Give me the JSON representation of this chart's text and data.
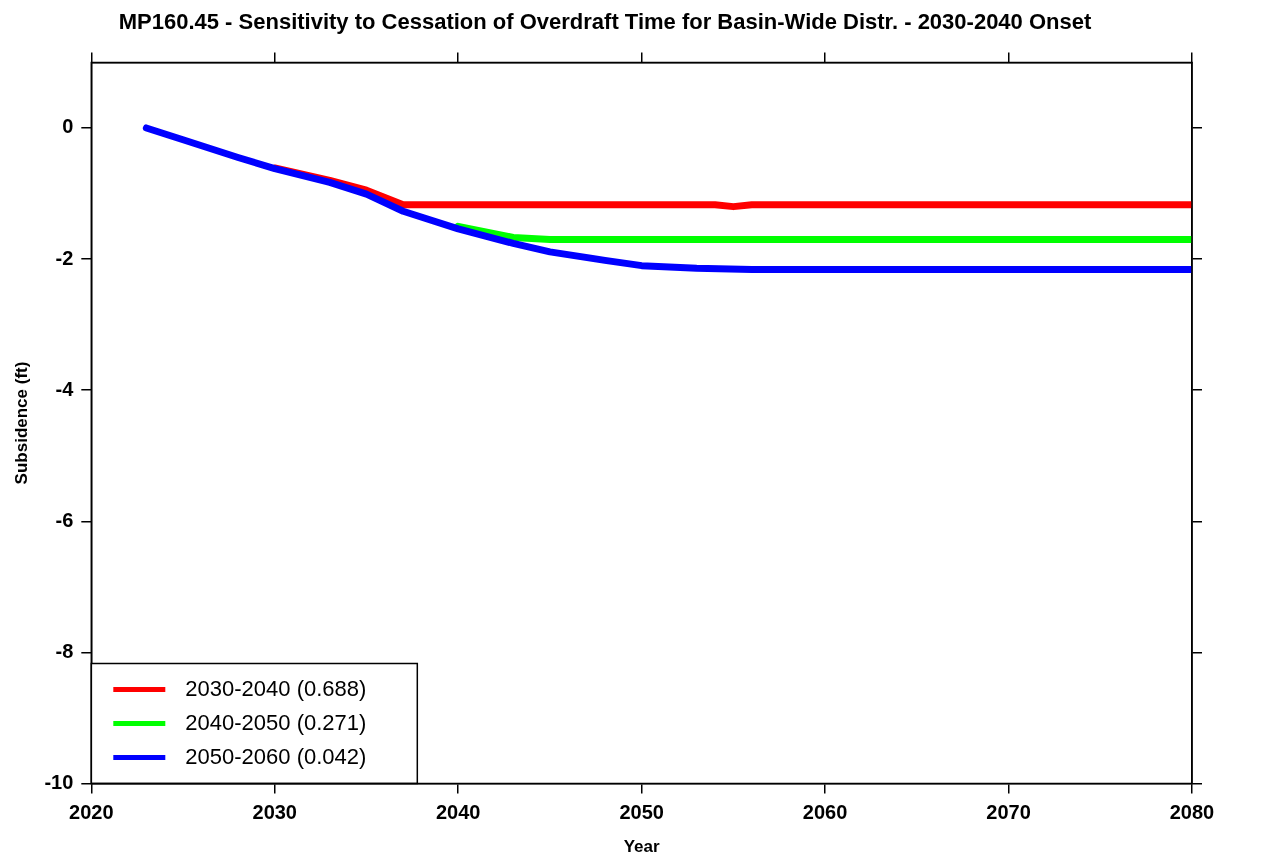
{
  "chart_data": {
    "type": "line",
    "title": "MP160.45 - Sensitivity to Cessation of Overdraft Time for Basin-Wide Distr. - 2030-2040 Onset",
    "xlabel": "Year",
    "ylabel": "Subsidence (ft)",
    "xlim": [
      2020,
      2080
    ],
    "xticks": [
      2020,
      2030,
      2040,
      2050,
      2060,
      2070,
      2080
    ],
    "ylim": [
      -10,
      1
    ],
    "yticks": [
      -10,
      -8,
      -6,
      -4,
      -2,
      0
    ],
    "grid": false,
    "legend": "bottom left",
    "marker": "none",
    "line_style": "solid",
    "series": [
      {
        "name": "2030-2040 (0.688)",
        "color": "#ff0000",
        "x": [
          2030,
          2033,
          2035,
          2037,
          2040,
          2050,
          2054,
          2055,
          2056,
          2060,
          2070,
          2080
        ],
        "values": [
          -0.61,
          -0.8,
          -0.95,
          -1.17,
          -1.17,
          -1.17,
          -1.17,
          -1.2,
          -1.17,
          -1.17,
          -1.17,
          -1.17
        ]
      },
      {
        "name": "2040-2050 (0.271)",
        "color": "#00ff00",
        "x": [
          2040,
          2043,
          2045,
          2050,
          2060,
          2070,
          2080
        ],
        "values": [
          -1.5,
          -1.67,
          -1.7,
          -1.7,
          -1.7,
          -1.7,
          -1.7
        ]
      },
      {
        "name": "2050-2060 (0.042)",
        "color": "#0000ff",
        "x": [
          2023,
          2025,
          2028,
          2030,
          2033,
          2035,
          2037,
          2040,
          2043,
          2045,
          2048,
          2050,
          2053,
          2056,
          2060,
          2070,
          2080
        ],
        "values": [
          0,
          -0.18,
          -0.45,
          -0.62,
          -0.83,
          -1.01,
          -1.27,
          -1.54,
          -1.76,
          -1.89,
          -2.02,
          -2.1,
          -2.14,
          -2.16,
          -2.16,
          -2.16,
          -2.16
        ]
      }
    ]
  }
}
